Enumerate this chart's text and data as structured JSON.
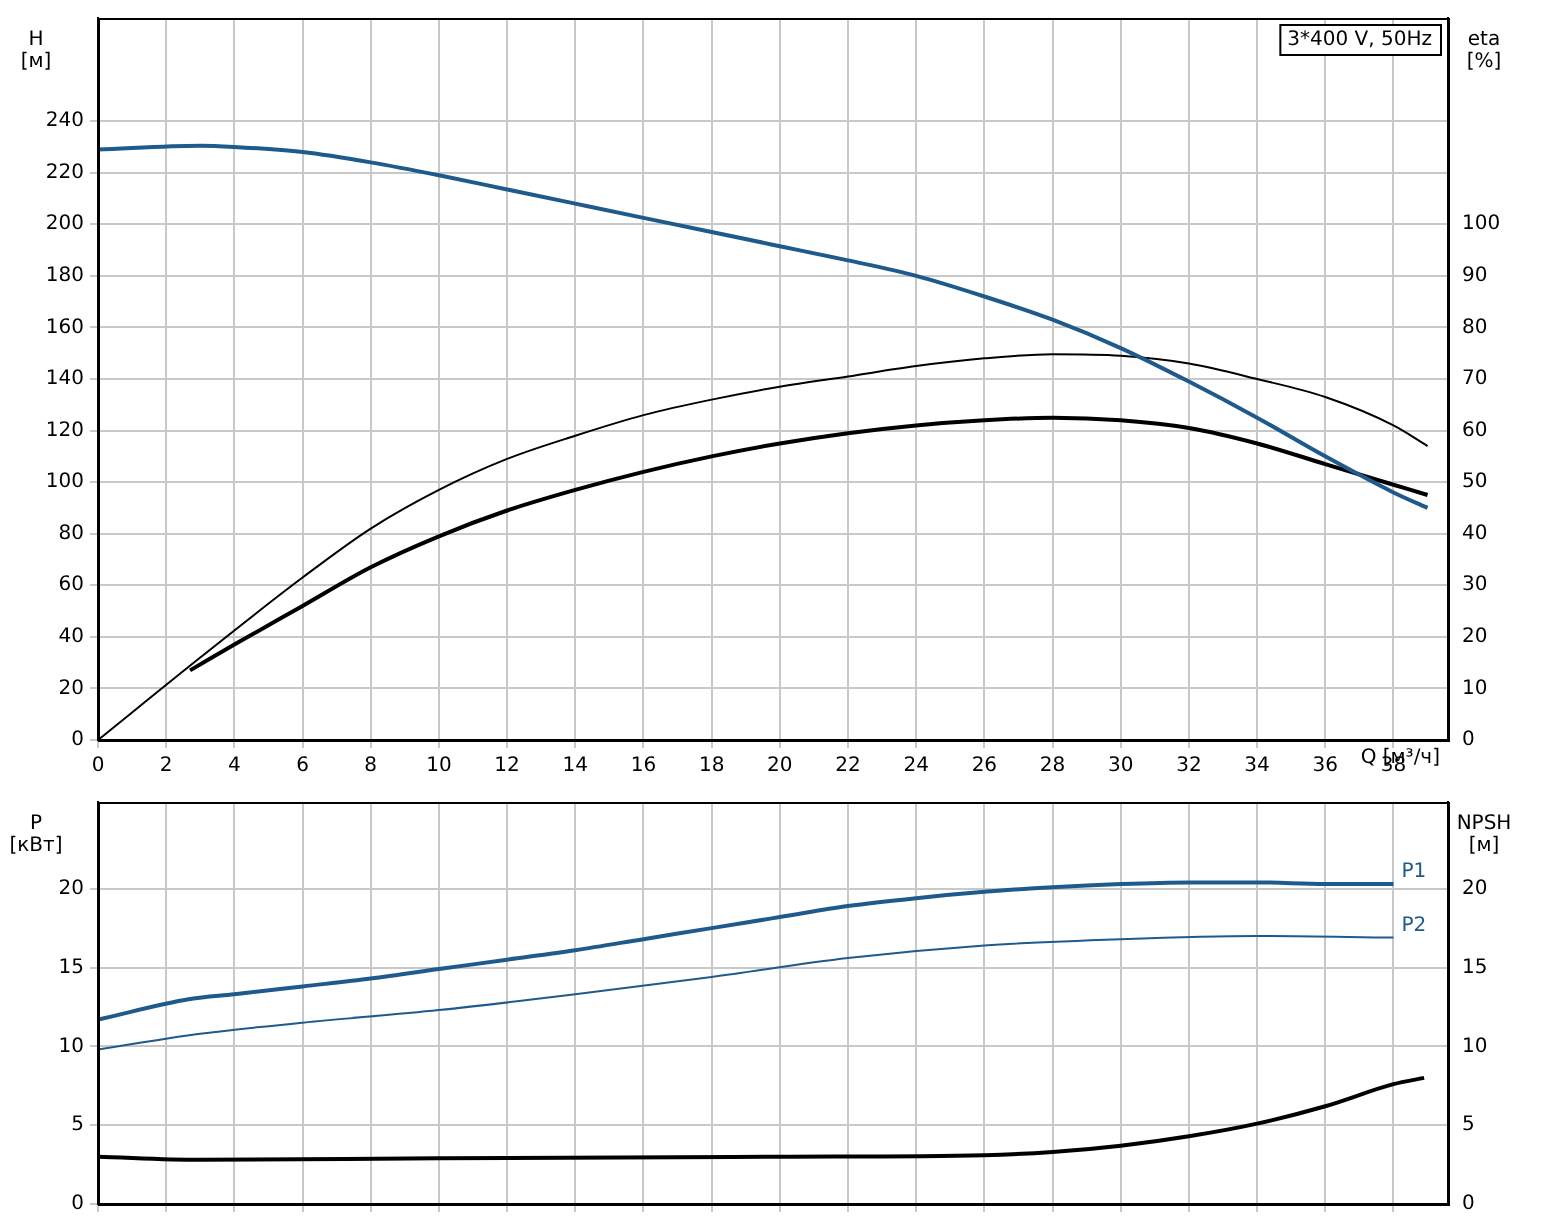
{
  "chart_data": [
    {
      "type": "line",
      "ylabel": "H [м]",
      "y2label": "eta [%]",
      "xlabel": "Q [м³/ч]",
      "annotations": [
        "3*400 V, 50Hz"
      ],
      "grid": true,
      "legend": false,
      "marker": "none",
      "line_style": "solid",
      "xlim": [
        0,
        39.6
      ],
      "xticks": [
        0,
        2,
        4,
        6,
        8,
        10,
        12,
        14,
        16,
        18,
        20,
        22,
        24,
        26,
        28,
        30,
        32,
        34,
        36,
        38
      ],
      "ylim": [
        0,
        280
      ],
      "yticks": [
        0,
        20,
        40,
        60,
        80,
        100,
        120,
        140,
        160,
        180,
        200,
        220,
        240
      ],
      "y2lim": [
        0,
        140
      ],
      "y2ticks": [
        0,
        10,
        20,
        30,
        40,
        50,
        60,
        70,
        80,
        90,
        100
      ],
      "series": [
        {
          "color": "#1f5a8c",
          "x": [
            0,
            3,
            4,
            6,
            8,
            10,
            12,
            14,
            16,
            18,
            20,
            22,
            24,
            26,
            28,
            30,
            32,
            34,
            36,
            38,
            39
          ],
          "values": [
            229,
            230.5,
            230,
            228,
            224,
            219,
            213.5,
            208,
            202.5,
            197,
            191.5,
            186,
            180,
            172,
            163,
            152,
            139,
            125,
            110,
            96,
            90
          ]
        },
        {
          "color": "#000000",
          "axis": "y2",
          "x": [
            0,
            3,
            6,
            8,
            10,
            12,
            14,
            16,
            18,
            20,
            22,
            24,
            26,
            28,
            30,
            32,
            34,
            36,
            38,
            39
          ],
          "values": [
            0,
            16,
            31.5,
            41,
            48.5,
            54.5,
            59,
            63,
            66,
            68.5,
            70.5,
            72.5,
            74,
            74.8,
            74.5,
            73,
            70,
            66.5,
            61,
            57
          ]
        },
        {
          "color": "#000000",
          "axis": "y2",
          "x": [
            2.7,
            4,
            6,
            8,
            10,
            12,
            14,
            16,
            18,
            20,
            22,
            24,
            26,
            28,
            30,
            32,
            34,
            36,
            38,
            39
          ],
          "values": [
            13.5,
            18.5,
            26,
            33.5,
            39.5,
            44.5,
            48.5,
            52,
            55,
            57.5,
            59.5,
            61,
            62,
            62.5,
            62,
            60.5,
            57.5,
            53.5,
            49.5,
            47.5
          ]
        }
      ]
    },
    {
      "type": "line",
      "ylabel": "P [кВт]",
      "y2label": "NPSH [м]",
      "grid": true,
      "legend": false,
      "marker": "none",
      "line_style": "solid",
      "tick_labels": "y",
      "xlim": [
        0,
        39.6
      ],
      "xticks": [
        0,
        2,
        4,
        6,
        8,
        10,
        12,
        14,
        16,
        18,
        20,
        22,
        24,
        26,
        28,
        30,
        32,
        34,
        36,
        38
      ],
      "ylim": [
        0,
        25.5
      ],
      "yticks": [
        0,
        5,
        10,
        15,
        20
      ],
      "y2lim": [
        0,
        25.5
      ],
      "y2ticks": [
        0,
        5,
        10,
        15,
        20
      ],
      "series": [
        {
          "name": "P1",
          "color": "#1f5a8c",
          "x": [
            0,
            2.7,
            4,
            6,
            8,
            10,
            12,
            14,
            16,
            18,
            20,
            22,
            24,
            26,
            28,
            30,
            32,
            34,
            36,
            38
          ],
          "values": [
            11.7,
            13,
            13.3,
            13.8,
            14.3,
            14.9,
            15.5,
            16.1,
            16.8,
            17.5,
            18.2,
            18.9,
            19.4,
            19.8,
            20.1,
            20.3,
            20.4,
            20.4,
            20.3,
            20.3
          ]
        },
        {
          "name": "P2",
          "color": "#1f5a8c",
          "x": [
            0,
            3,
            6,
            10,
            14,
            18,
            22,
            26,
            30,
            34,
            38
          ],
          "values": [
            9.8,
            10.8,
            11.5,
            12.3,
            13.3,
            14.4,
            15.6,
            16.4,
            16.8,
            17,
            16.9
          ]
        },
        {
          "color": "#000000",
          "axis": "y2",
          "x": [
            0,
            3,
            10,
            20,
            26,
            28,
            30,
            32,
            34,
            36,
            38,
            38.9
          ],
          "values": [
            3,
            2.8,
            2.9,
            3,
            3.1,
            3.3,
            3.7,
            4.3,
            5.1,
            6.2,
            7.6,
            8
          ]
        }
      ]
    }
  ]
}
